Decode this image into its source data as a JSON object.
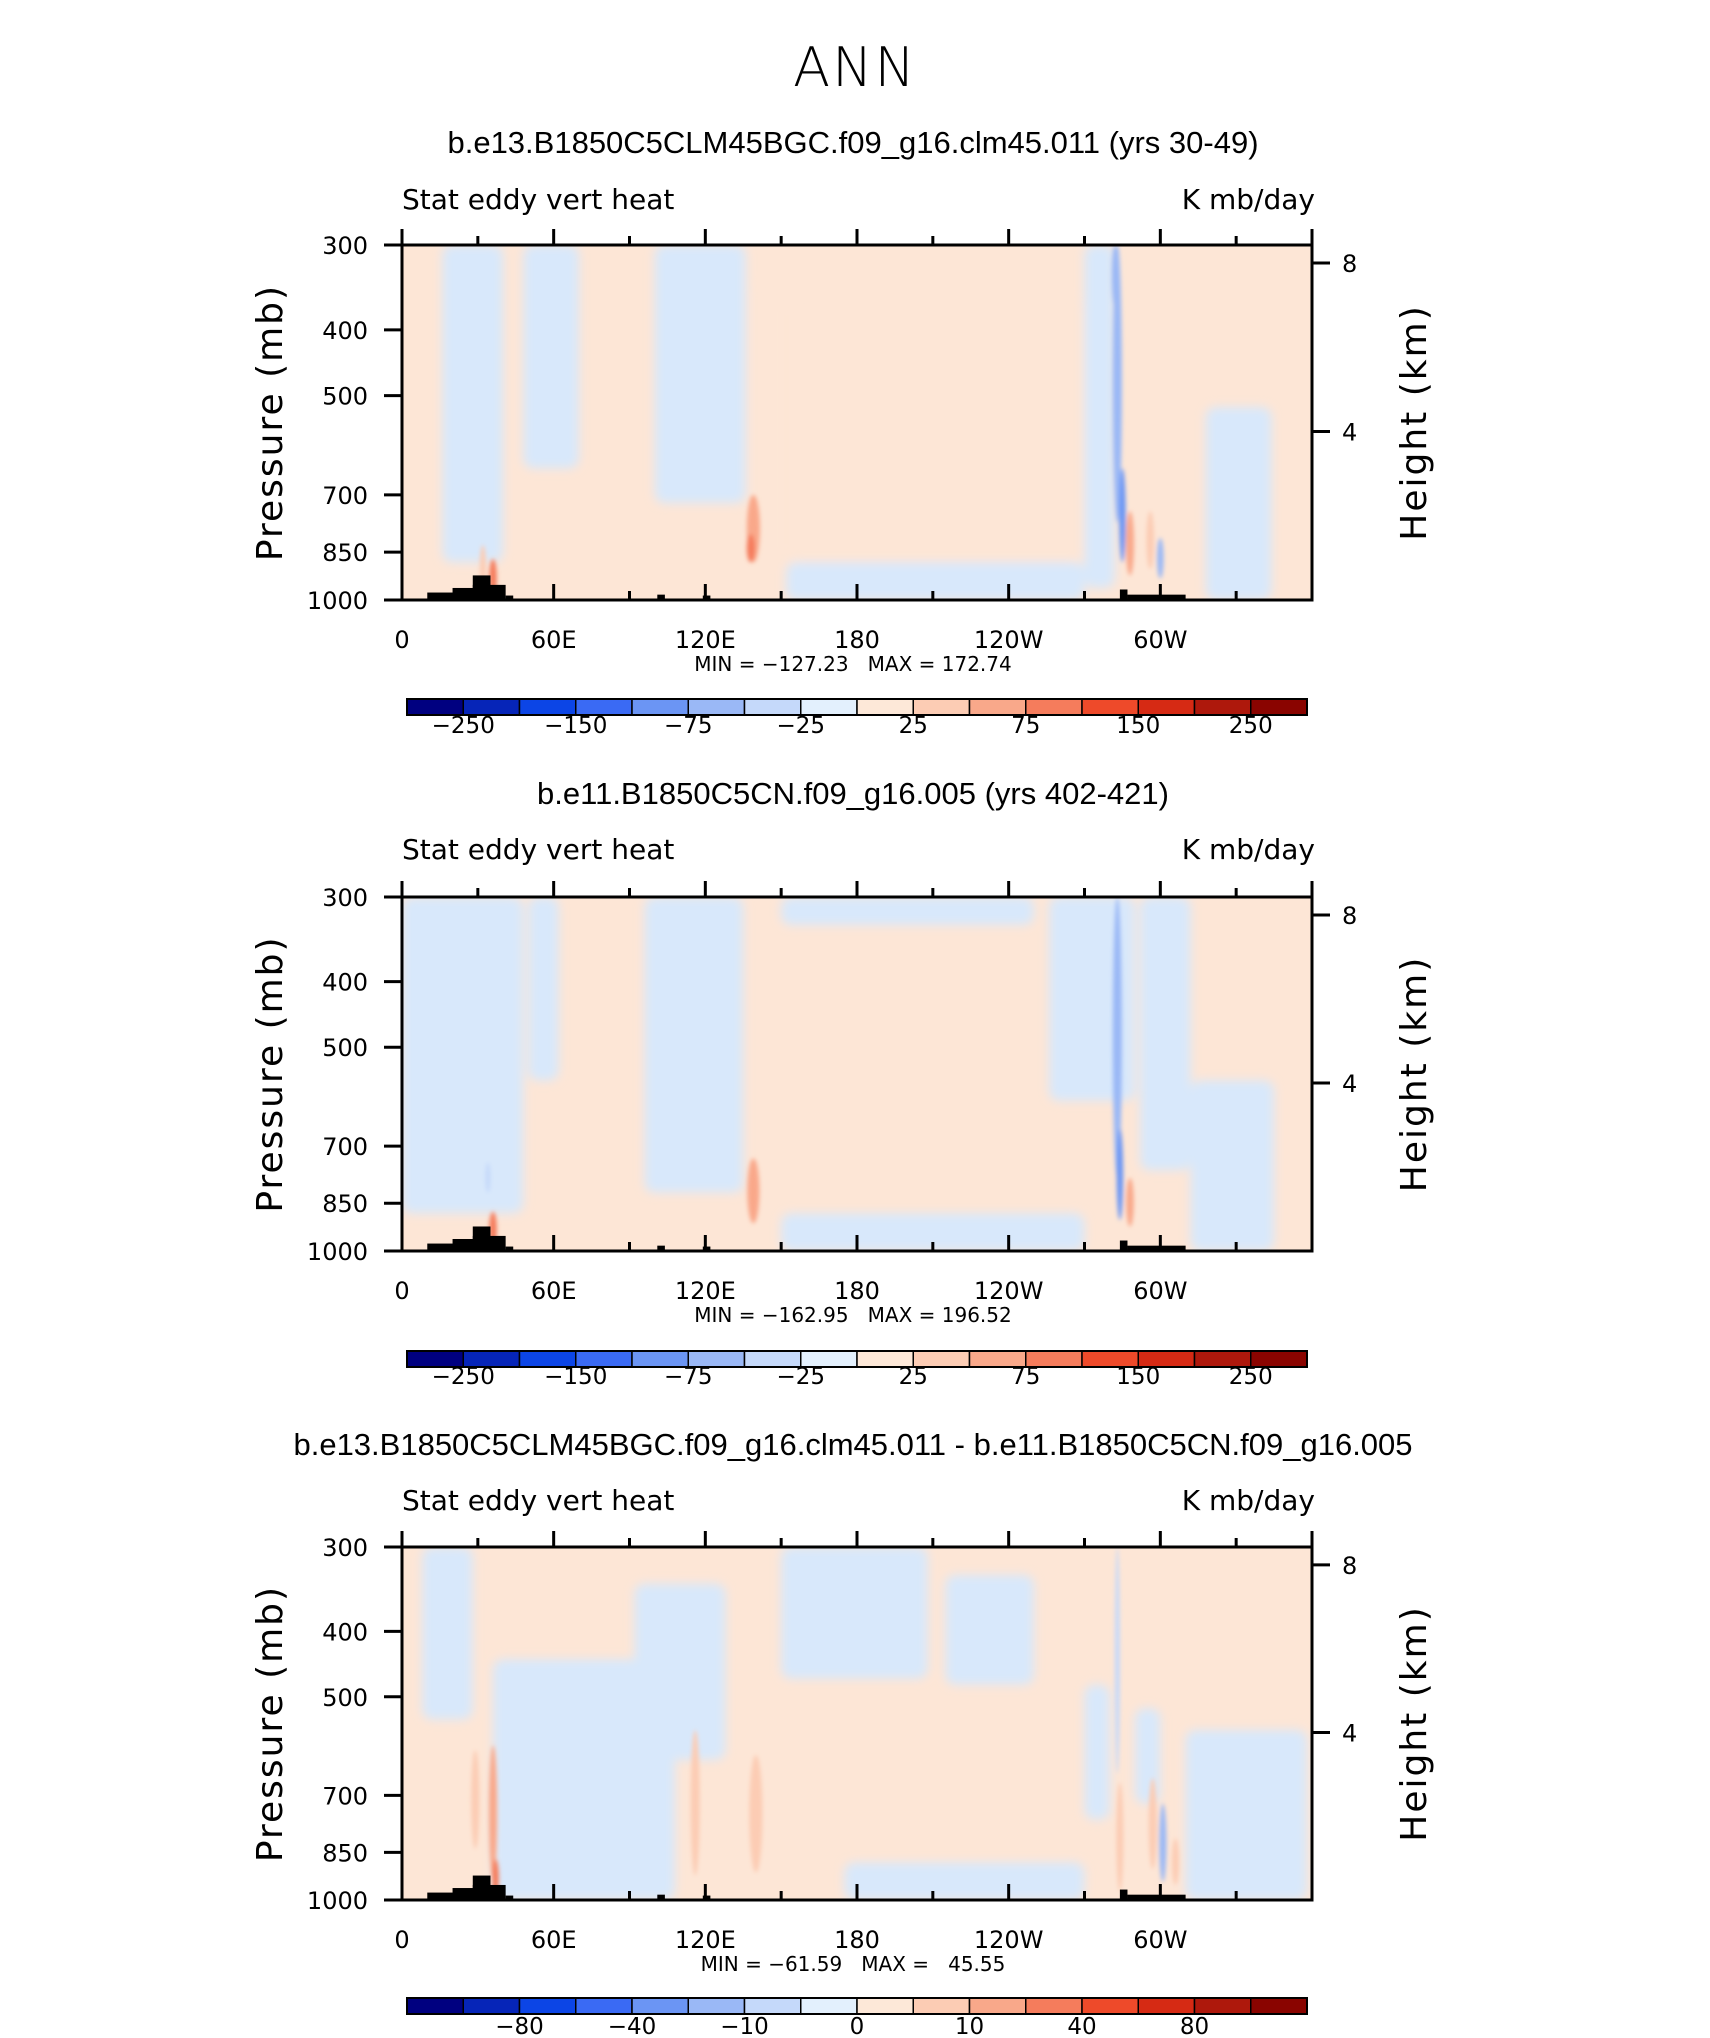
{
  "figure": {
    "title": "ANN"
  },
  "chart_data": [
    {
      "type": "heatmap",
      "title": "b.e13.B1850C5CLM45BGC.f09_g16.clm45.011 (yrs 30-49)",
      "left_string": "Stat eddy vert heat",
      "right_string": "K mb/day",
      "ylabel": "Pressure (mb)",
      "ylabel_right": "Height (km)",
      "x_ticks": [
        {
          "lon": 0,
          "label": "0"
        },
        {
          "lon": 60,
          "label": "60E"
        },
        {
          "lon": 120,
          "label": "120E"
        },
        {
          "lon": 180,
          "label": "180"
        },
        {
          "lon": 240,
          "label": "120W"
        },
        {
          "lon": 300,
          "label": "60W"
        }
      ],
      "y_ticks": [
        {
          "p": 300,
          "label": "300"
        },
        {
          "p": 400,
          "label": "400"
        },
        {
          "p": 500,
          "label": "500"
        },
        {
          "p": 700,
          "label": "700"
        },
        {
          "p": 850,
          "label": "850"
        },
        {
          "p": 1000,
          "label": "1000"
        }
      ],
      "height_ticks": [
        {
          "km": 8,
          "label": "8"
        },
        {
          "km": 4,
          "label": "4"
        }
      ],
      "xlim": [
        0,
        360
      ],
      "ylim": [
        1000,
        300
      ],
      "stats": "MIN = −127.23   MAX = 172.74",
      "colorbar_labels": [
        "−250",
        "−150",
        "−75",
        "−25",
        "25",
        "75",
        "150",
        "250"
      ],
      "features": [
        {
          "kind": "band",
          "lon0": 140,
          "lon1": 152,
          "p_top": 340,
          "p_bot": 880,
          "level": 1
        },
        {
          "kind": "band",
          "lon0": 152,
          "lon1": 270,
          "p_top": 360,
          "p_bot": 880,
          "level": 1
        },
        {
          "kind": "band",
          "lon0": 16,
          "lon1": 40,
          "p_top": 300,
          "p_bot": 880,
          "level": -1
        },
        {
          "kind": "band",
          "lon0": 48,
          "lon1": 70,
          "p_top": 300,
          "p_bot": 640,
          "level": -1
        },
        {
          "kind": "band",
          "lon0": 100,
          "lon1": 136,
          "p_top": 300,
          "p_bot": 720,
          "level": -1
        },
        {
          "kind": "band",
          "lon0": 152,
          "lon1": 270,
          "p_top": 880,
          "p_bot": 1000,
          "level": -1
        },
        {
          "kind": "band",
          "lon0": 270,
          "lon1": 282,
          "p_top": 300,
          "p_bot": 960,
          "level": -1
        },
        {
          "kind": "band",
          "lon0": 318,
          "lon1": 344,
          "p_top": 520,
          "p_bot": 1000,
          "level": -1
        },
        {
          "kind": "spot",
          "lon": 139,
          "p": 790,
          "dlon": 2.6,
          "dp": 90,
          "level": 3
        },
        {
          "kind": "spot",
          "lon": 138,
          "p": 840,
          "dlon": 1.6,
          "dp": 40,
          "level": 4
        },
        {
          "kind": "spot",
          "lon": 283,
          "p": 520,
          "dlon": 1.8,
          "dp": 250,
          "level": -3
        },
        {
          "kind": "spot",
          "lon": 282,
          "p": 320,
          "dlon": 1.2,
          "dp": 50,
          "level": -3
        },
        {
          "kind": "spot",
          "lon": 285,
          "p": 760,
          "dlon": 1.3,
          "dp": 120,
          "level": -4
        },
        {
          "kind": "spot",
          "lon": 288,
          "p": 830,
          "dlon": 1.6,
          "dp": 90,
          "level": 3
        },
        {
          "kind": "spot",
          "lon": 296,
          "p": 820,
          "dlon": 1.5,
          "dp": 80,
          "level": 2
        },
        {
          "kind": "spot",
          "lon": 300,
          "p": 870,
          "dlon": 1.3,
          "dp": 60,
          "level": -3
        },
        {
          "kind": "spot",
          "lon": 36,
          "p": 930,
          "dlon": 1.5,
          "dp": 60,
          "level": 4
        },
        {
          "kind": "spot",
          "lon": 32,
          "p": 900,
          "dlon": 1.2,
          "dp": 70,
          "level": 2
        }
      ]
    },
    {
      "type": "heatmap",
      "title": "b.e11.B1850C5CN.f09_g16.005 (yrs 402-421)",
      "left_string": "Stat eddy vert heat",
      "right_string": "K mb/day",
      "ylabel": "Pressure (mb)",
      "ylabel_right": "Height (km)",
      "x_ticks": [
        {
          "lon": 0,
          "label": "0"
        },
        {
          "lon": 60,
          "label": "60E"
        },
        {
          "lon": 120,
          "label": "120E"
        },
        {
          "lon": 180,
          "label": "180"
        },
        {
          "lon": 240,
          "label": "120W"
        },
        {
          "lon": 300,
          "label": "60W"
        }
      ],
      "y_ticks": [
        {
          "p": 300,
          "label": "300"
        },
        {
          "p": 400,
          "label": "400"
        },
        {
          "p": 500,
          "label": "500"
        },
        {
          "p": 700,
          "label": "700"
        },
        {
          "p": 850,
          "label": "850"
        },
        {
          "p": 1000,
          "label": "1000"
        }
      ],
      "height_ticks": [
        {
          "km": 8,
          "label": "8"
        },
        {
          "km": 4,
          "label": "4"
        }
      ],
      "xlim": [
        0,
        360
      ],
      "ylim": [
        1000,
        300
      ],
      "stats": "MIN = −162.95   MAX = 196.52",
      "colorbar_labels": [
        "−250",
        "−150",
        "−75",
        "−25",
        "25",
        "75",
        "150",
        "250"
      ],
      "features": [
        {
          "kind": "band",
          "lon0": 0,
          "lon1": 48,
          "p_top": 300,
          "p_bot": 880,
          "level": -1
        },
        {
          "kind": "band",
          "lon0": 50,
          "lon1": 62,
          "p_top": 300,
          "p_bot": 560,
          "level": -1
        },
        {
          "kind": "band",
          "lon0": 96,
          "lon1": 135,
          "p_top": 300,
          "p_bot": 820,
          "level": -1
        },
        {
          "kind": "band",
          "lon0": 150,
          "lon1": 270,
          "p_top": 880,
          "p_bot": 1000,
          "level": -1
        },
        {
          "kind": "band",
          "lon0": 150,
          "lon1": 250,
          "p_top": 300,
          "p_bot": 330,
          "level": -1
        },
        {
          "kind": "band",
          "lon0": 256,
          "lon1": 290,
          "p_top": 300,
          "p_bot": 600,
          "level": -1
        },
        {
          "kind": "band",
          "lon0": 292,
          "lon1": 312,
          "p_top": 300,
          "p_bot": 760,
          "level": -1
        },
        {
          "kind": "band",
          "lon0": 312,
          "lon1": 345,
          "p_top": 560,
          "p_bot": 1000,
          "level": -1
        },
        {
          "kind": "spot",
          "lon": 139,
          "p": 820,
          "dlon": 2.4,
          "dp": 90,
          "level": 3
        },
        {
          "kind": "spot",
          "lon": 283,
          "p": 520,
          "dlon": 1.8,
          "dp": 260,
          "level": -3
        },
        {
          "kind": "spot",
          "lon": 284,
          "p": 780,
          "dlon": 1.3,
          "dp": 120,
          "level": -4
        },
        {
          "kind": "spot",
          "lon": 288,
          "p": 850,
          "dlon": 1.5,
          "dp": 70,
          "level": 3
        },
        {
          "kind": "spot",
          "lon": 36,
          "p": 930,
          "dlon": 1.5,
          "dp": 55,
          "level": 4
        },
        {
          "kind": "spot",
          "lon": 34,
          "p": 780,
          "dlon": 1.0,
          "dp": 40,
          "level": -2
        }
      ]
    },
    {
      "type": "heatmap",
      "title": "b.e13.B1850C5CLM45BGC.f09_g16.clm45.011 - b.e11.B1850C5CN.f09_g16.005",
      "left_string": "Stat eddy vert heat",
      "right_string": "K mb/day",
      "ylabel": "Pressure (mb)",
      "ylabel_right": "Height (km)",
      "x_ticks": [
        {
          "lon": 0,
          "label": "0"
        },
        {
          "lon": 60,
          "label": "60E"
        },
        {
          "lon": 120,
          "label": "120E"
        },
        {
          "lon": 180,
          "label": "180"
        },
        {
          "lon": 240,
          "label": "120W"
        },
        {
          "lon": 300,
          "label": "60W"
        }
      ],
      "y_ticks": [
        {
          "p": 300,
          "label": "300"
        },
        {
          "p": 400,
          "label": "400"
        },
        {
          "p": 500,
          "label": "500"
        },
        {
          "p": 700,
          "label": "700"
        },
        {
          "p": 850,
          "label": "850"
        },
        {
          "p": 1000,
          "label": "1000"
        }
      ],
      "height_ticks": [
        {
          "km": 8,
          "label": "8"
        },
        {
          "km": 4,
          "label": "4"
        }
      ],
      "xlim": [
        0,
        360
      ],
      "ylim": [
        1000,
        300
      ],
      "stats": "MIN = −61.59   MAX =   45.55",
      "colorbar_labels": [
        "−80",
        "−40",
        "−10",
        "0",
        "10",
        "40",
        "80"
      ],
      "features": [
        {
          "kind": "band",
          "lon0": 36,
          "lon1": 108,
          "p_top": 440,
          "p_bot": 1000,
          "level": -1
        },
        {
          "kind": "band",
          "lon0": 8,
          "lon1": 28,
          "p_top": 300,
          "p_bot": 540,
          "level": -1
        },
        {
          "kind": "band",
          "lon0": 92,
          "lon1": 128,
          "p_top": 340,
          "p_bot": 620,
          "level": -1
        },
        {
          "kind": "band",
          "lon0": 150,
          "lon1": 208,
          "p_top": 300,
          "p_bot": 470,
          "level": -1
        },
        {
          "kind": "band",
          "lon0": 215,
          "lon1": 250,
          "p_top": 330,
          "p_bot": 480,
          "level": -1
        },
        {
          "kind": "band",
          "lon0": 175,
          "lon1": 270,
          "p_top": 880,
          "p_bot": 1000,
          "level": -1
        },
        {
          "kind": "band",
          "lon0": 290,
          "lon1": 300,
          "p_top": 520,
          "p_bot": 720,
          "level": -1
        },
        {
          "kind": "band",
          "lon0": 310,
          "lon1": 358,
          "p_top": 560,
          "p_bot": 1000,
          "level": -1
        },
        {
          "kind": "band",
          "lon0": 270,
          "lon1": 280,
          "p_top": 480,
          "p_bot": 760,
          "level": -1
        },
        {
          "kind": "spot",
          "lon": 36,
          "p": 760,
          "dlon": 1.6,
          "dp": 170,
          "level": 3
        },
        {
          "kind": "spot",
          "lon": 29,
          "p": 720,
          "dlon": 1.6,
          "dp": 120,
          "level": 2
        },
        {
          "kind": "spot",
          "lon": 116,
          "p": 740,
          "dlon": 1.8,
          "dp": 180,
          "level": 2
        },
        {
          "kind": "spot",
          "lon": 140,
          "p": 760,
          "dlon": 2.6,
          "dp": 150,
          "level": 2
        },
        {
          "kind": "spot",
          "lon": 284,
          "p": 820,
          "dlon": 1.4,
          "dp": 150,
          "level": 2
        },
        {
          "kind": "spot",
          "lon": 283,
          "p": 450,
          "dlon": 1.0,
          "dp": 200,
          "level": -2
        },
        {
          "kind": "spot",
          "lon": 297,
          "p": 780,
          "dlon": 1.6,
          "dp": 120,
          "level": 2
        },
        {
          "kind": "spot",
          "lon": 301,
          "p": 830,
          "dlon": 1.4,
          "dp": 110,
          "level": -3
        },
        {
          "kind": "spot",
          "lon": 306,
          "p": 880,
          "dlon": 1.4,
          "dp": 70,
          "level": 2
        },
        {
          "kind": "spot",
          "lon": 37,
          "p": 930,
          "dlon": 1.3,
          "dp": 60,
          "level": 4
        }
      ]
    }
  ],
  "topography": [
    {
      "lon0": 10,
      "lon1": 28,
      "p_top": 975
    },
    {
      "lon0": 20,
      "lon1": 30,
      "p_top": 960
    },
    {
      "lon0": 28,
      "lon1": 35,
      "p_top": 920
    },
    {
      "lon0": 28,
      "lon1": 41,
      "p_top": 950
    },
    {
      "lon0": 41,
      "lon1": 44,
      "p_top": 985
    },
    {
      "lon0": 101,
      "lon1": 104,
      "p_top": 982
    },
    {
      "lon0": 119,
      "lon1": 122,
      "p_top": 985
    },
    {
      "lon0": 284,
      "lon1": 287,
      "p_top": 965
    },
    {
      "lon0": 287,
      "lon1": 310,
      "p_top": 982
    }
  ],
  "colors": {
    "background": "#ffffff",
    "neg1": "#d8e8fb",
    "pos1": "#fde6d6",
    "palette": [
      "#000080",
      "#0625b8",
      "#0c45e6",
      "#3a6af4",
      "#6b95f4",
      "#9ab8f6",
      "#c5d9fa",
      "#e3f0fd",
      "#fde8d8",
      "#fcccb4",
      "#f9a88a",
      "#f57c5c",
      "#ee4a2a",
      "#d62a14",
      "#ae180c",
      "#8a0400"
    ]
  }
}
